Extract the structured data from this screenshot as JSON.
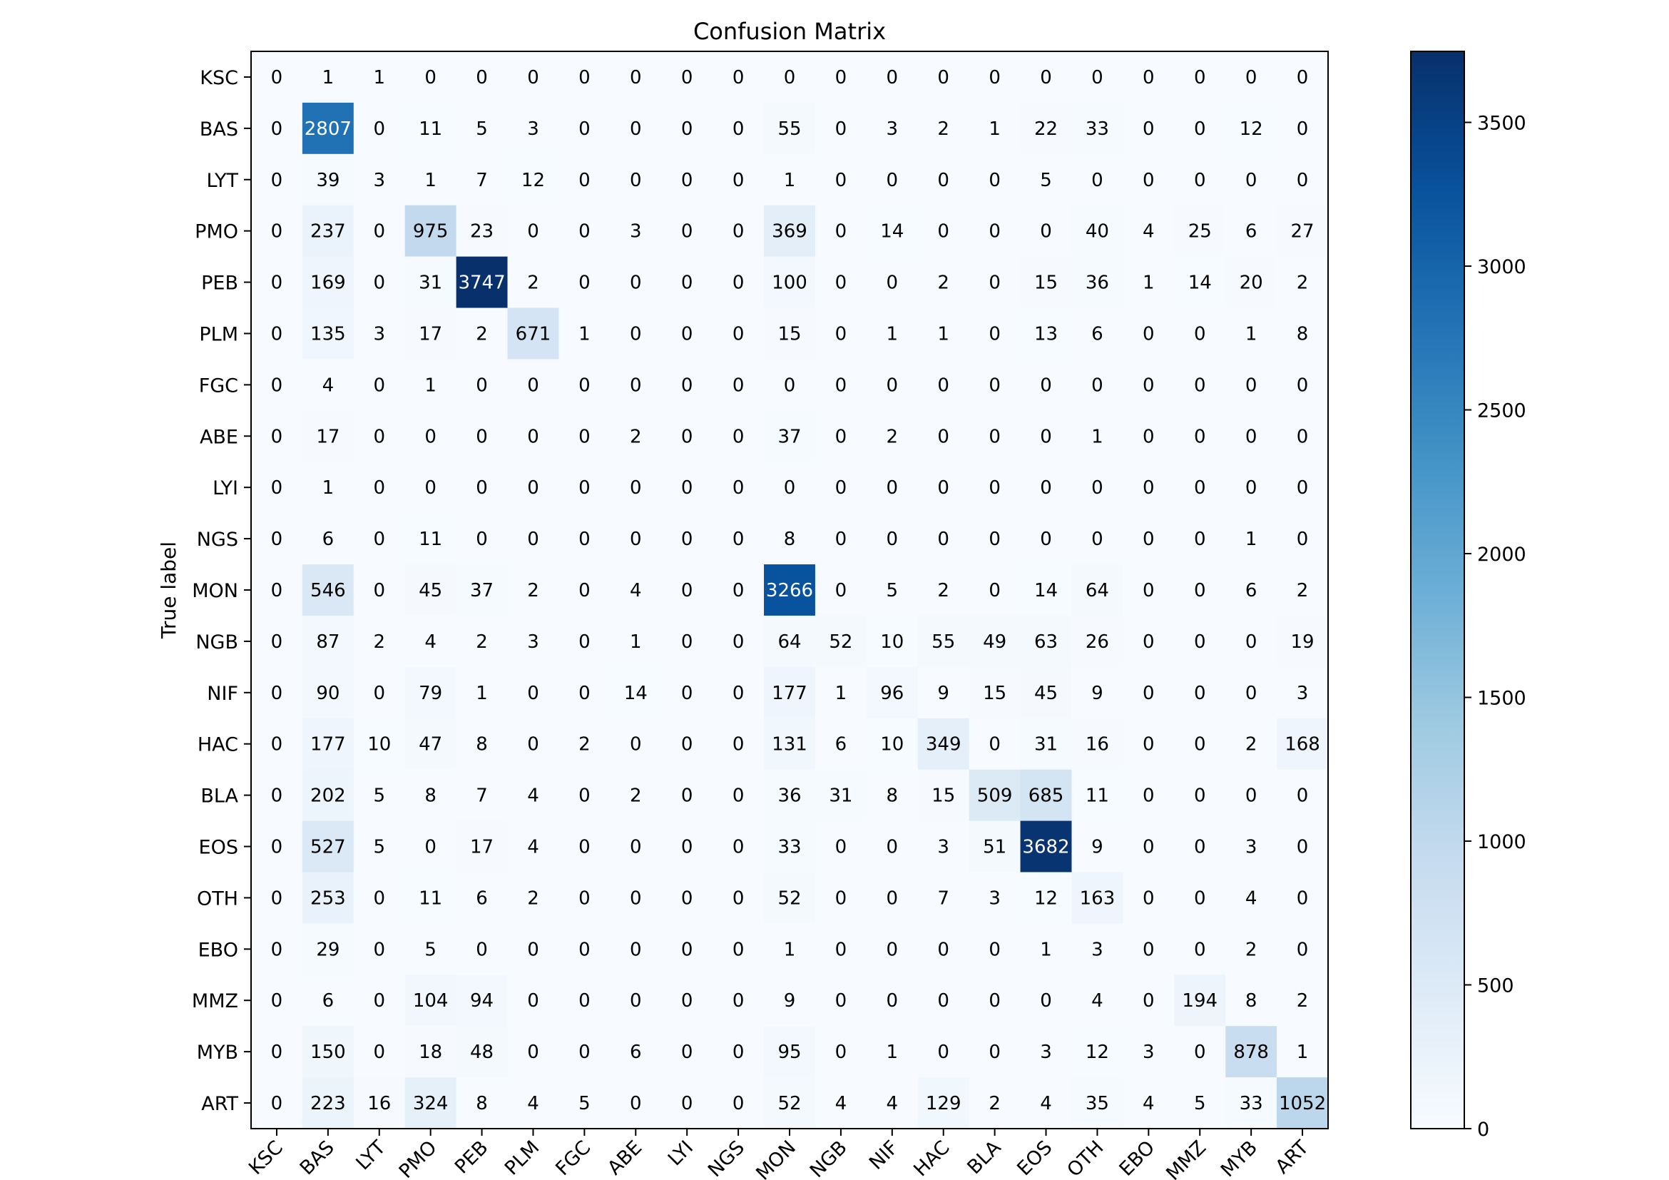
{
  "chart_data": {
    "type": "heatmap",
    "title": "Confusion Matrix",
    "ylabel": "True label",
    "xlabel": "",
    "labels": [
      "KSC",
      "BAS",
      "LYT",
      "PMO",
      "PEB",
      "PLM",
      "FGC",
      "ABE",
      "LYI",
      "NGS",
      "MON",
      "NGB",
      "NIF",
      "HAC",
      "BLA",
      "EOS",
      "OTH",
      "EBO",
      "MMZ",
      "MYB",
      "ART"
    ],
    "matrix": [
      [
        0,
        1,
        1,
        0,
        0,
        0,
        0,
        0,
        0,
        0,
        0,
        0,
        0,
        0,
        0,
        0,
        0,
        0,
        0,
        0,
        0
      ],
      [
        0,
        2807,
        0,
        11,
        5,
        3,
        0,
        0,
        0,
        0,
        55,
        0,
        3,
        2,
        1,
        22,
        33,
        0,
        0,
        12,
        0
      ],
      [
        0,
        39,
        3,
        1,
        7,
        12,
        0,
        0,
        0,
        0,
        1,
        0,
        0,
        0,
        0,
        5,
        0,
        0,
        0,
        0,
        0
      ],
      [
        0,
        237,
        0,
        975,
        23,
        0,
        0,
        3,
        0,
        0,
        369,
        0,
        14,
        0,
        0,
        0,
        40,
        4,
        25,
        6,
        27
      ],
      [
        0,
        169,
        0,
        31,
        3747,
        2,
        0,
        0,
        0,
        0,
        100,
        0,
        0,
        2,
        0,
        15,
        36,
        1,
        14,
        20,
        2
      ],
      [
        0,
        135,
        3,
        17,
        2,
        671,
        1,
        0,
        0,
        0,
        15,
        0,
        1,
        1,
        0,
        13,
        6,
        0,
        0,
        1,
        8
      ],
      [
        0,
        4,
        0,
        1,
        0,
        0,
        0,
        0,
        0,
        0,
        0,
        0,
        0,
        0,
        0,
        0,
        0,
        0,
        0,
        0,
        0
      ],
      [
        0,
        17,
        0,
        0,
        0,
        0,
        0,
        2,
        0,
        0,
        37,
        0,
        2,
        0,
        0,
        0,
        1,
        0,
        0,
        0,
        0
      ],
      [
        0,
        1,
        0,
        0,
        0,
        0,
        0,
        0,
        0,
        0,
        0,
        0,
        0,
        0,
        0,
        0,
        0,
        0,
        0,
        0,
        0
      ],
      [
        0,
        6,
        0,
        11,
        0,
        0,
        0,
        0,
        0,
        0,
        8,
        0,
        0,
        0,
        0,
        0,
        0,
        0,
        0,
        1,
        0
      ],
      [
        0,
        546,
        0,
        45,
        37,
        2,
        0,
        4,
        0,
        0,
        3266,
        0,
        5,
        2,
        0,
        14,
        64,
        0,
        0,
        6,
        2
      ],
      [
        0,
        87,
        2,
        4,
        2,
        3,
        0,
        1,
        0,
        0,
        64,
        52,
        10,
        55,
        49,
        63,
        26,
        0,
        0,
        0,
        19
      ],
      [
        0,
        90,
        0,
        79,
        1,
        0,
        0,
        14,
        0,
        0,
        177,
        1,
        96,
        9,
        15,
        45,
        9,
        0,
        0,
        0,
        3
      ],
      [
        0,
        177,
        10,
        47,
        8,
        0,
        2,
        0,
        0,
        0,
        131,
        6,
        10,
        349,
        0,
        31,
        16,
        0,
        0,
        2,
        168
      ],
      [
        0,
        202,
        5,
        8,
        7,
        4,
        0,
        2,
        0,
        0,
        36,
        31,
        8,
        15,
        509,
        685,
        11,
        0,
        0,
        0,
        0
      ],
      [
        0,
        527,
        5,
        0,
        17,
        4,
        0,
        0,
        0,
        0,
        33,
        0,
        0,
        3,
        51,
        3682,
        9,
        0,
        0,
        3,
        0
      ],
      [
        0,
        253,
        0,
        11,
        6,
        2,
        0,
        0,
        0,
        0,
        52,
        0,
        0,
        7,
        3,
        12,
        163,
        0,
        0,
        4,
        0
      ],
      [
        0,
        29,
        0,
        5,
        0,
        0,
        0,
        0,
        0,
        0,
        1,
        0,
        0,
        0,
        0,
        1,
        3,
        0,
        0,
        2,
        0
      ],
      [
        0,
        6,
        0,
        104,
        94,
        0,
        0,
        0,
        0,
        0,
        9,
        0,
        0,
        0,
        0,
        0,
        4,
        0,
        194,
        8,
        2
      ],
      [
        0,
        150,
        0,
        18,
        48,
        0,
        0,
        6,
        0,
        0,
        95,
        0,
        1,
        0,
        0,
        3,
        12,
        3,
        0,
        878,
        1
      ],
      [
        0,
        223,
        16,
        324,
        8,
        4,
        5,
        0,
        0,
        0,
        52,
        4,
        4,
        129,
        2,
        4,
        35,
        4,
        5,
        33,
        1052
      ]
    ],
    "colormap": "Blues",
    "vmin": 0,
    "vmax": 3747,
    "colorbar_ticks": [
      0,
      500,
      1000,
      1500,
      2000,
      2500,
      3000,
      3500
    ],
    "text_color_threshold": 1873.5,
    "grid": false
  }
}
